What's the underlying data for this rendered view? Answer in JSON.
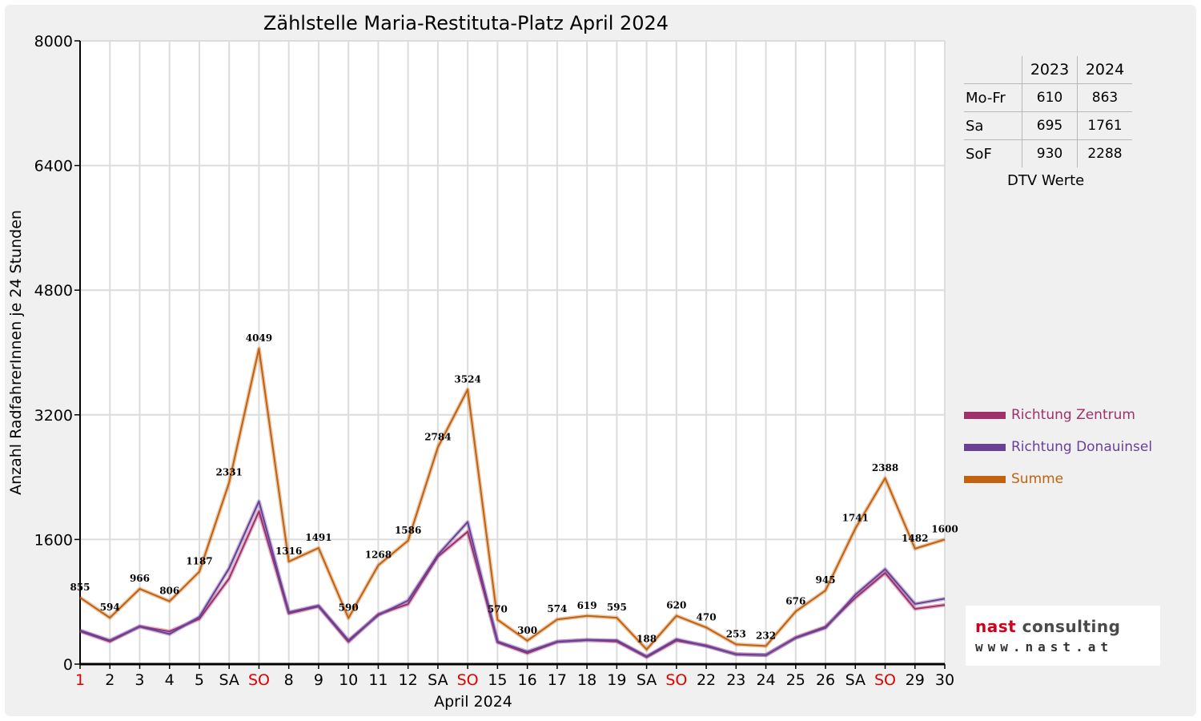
{
  "chart_data": {
    "type": "line",
    "title": "Zählstelle Maria-Restituta-Platz April 2024",
    "xlabel": "April 2024",
    "ylabel": "Anzahl RadfahrerInnen je 24 Stunden",
    "ylim": [
      0,
      8000
    ],
    "yticks": [
      "0",
      "1600",
      "3200",
      "4800",
      "6400",
      "8000"
    ],
    "categories": [
      "1",
      "2",
      "3",
      "4",
      "5",
      "SA",
      "SO",
      "8",
      "9",
      "10",
      "11",
      "12",
      "SA",
      "SO",
      "15",
      "16",
      "17",
      "18",
      "19",
      "SA",
      "SO",
      "22",
      "23",
      "24",
      "25",
      "26",
      "SA",
      "SO",
      "29",
      "30"
    ],
    "red_categories": [
      0,
      6,
      13,
      20,
      27
    ],
    "grid": "vertical and horizontal",
    "legend_position": "right",
    "series": [
      {
        "name": "Richtung Zentrum",
        "color": "#a0306a",
        "values": [
          423,
          290,
          485,
          420,
          580,
          1100,
          1960,
          650,
          740,
          285,
          640,
          770,
          1380,
          1700,
          280,
          140,
          285,
          310,
          290,
          90,
          300,
          240,
          125,
          115,
          340,
          480,
          850,
          1170,
          710,
          760
        ]
      },
      {
        "name": "Richtung Donauinsel",
        "color": "#6a3f96",
        "values": [
          432,
          304,
          481,
          386,
          607,
          1231,
          2089,
          666,
          751,
          305,
          628,
          816,
          1404,
          1824,
          290,
          160,
          289,
          309,
          305,
          98,
          320,
          230,
          128,
          117,
          336,
          465,
          891,
          1218,
          772,
          840
        ]
      },
      {
        "name": "Summe",
        "color": "#c0620e",
        "values": [
          855,
          594,
          966,
          806,
          1187,
          2331,
          4049,
          1316,
          1491,
          590,
          1268,
          1586,
          2784,
          3524,
          570,
          300,
          574,
          619,
          595,
          188,
          620,
          470,
          253,
          232,
          676,
          945,
          1741,
          2388,
          1482,
          1600
        ]
      }
    ],
    "data_labels": [
      "855",
      "594",
      "966",
      "806",
      "1187",
      "2331",
      "4049",
      "1316",
      "1491",
      "590",
      "1268",
      "1586",
      "2784",
      "3524",
      "570",
      "300",
      "574",
      "619",
      "595",
      "188",
      "620",
      "470",
      "253",
      "232",
      "676",
      "945",
      "1741",
      "2388",
      "1482",
      "1600"
    ]
  },
  "dtv_table": {
    "headers": [
      "",
      "2023",
      "2024"
    ],
    "rows": [
      {
        "label": "Mo-Fr",
        "v2023": "610",
        "v2024": "863"
      },
      {
        "label": "Sa",
        "v2023": "695",
        "v2024": "1761"
      },
      {
        "label": "SoF",
        "v2023": "930",
        "v2024": "2288"
      }
    ],
    "caption": "DTV Werte"
  },
  "logo": {
    "word1": "nast",
    "word2": " consulting",
    "url": "www.nast.at"
  }
}
